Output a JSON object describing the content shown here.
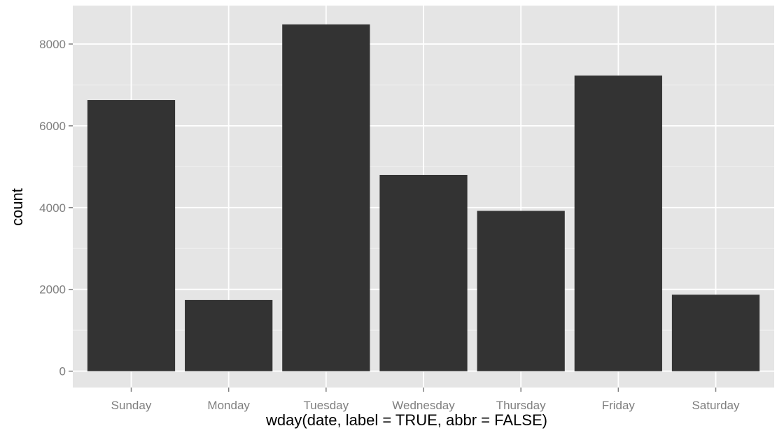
{
  "chart_data": {
    "type": "bar",
    "xlabel": "wday(date, label = TRUE, abbr = FALSE)",
    "ylabel": "count",
    "categories": [
      "Sunday",
      "Monday",
      "Tuesday",
      "Wednesday",
      "Thursday",
      "Friday",
      "Saturday"
    ],
    "values": [
      6630,
      1740,
      8480,
      4800,
      3920,
      7230,
      1870
    ],
    "ylim": [
      -400,
      8940
    ],
    "yticks": [
      0,
      2000,
      4000,
      6000,
      8000
    ],
    "ytick_labels": [
      "0",
      "2000",
      "4000",
      "6000",
      "8000"
    ],
    "grid": true,
    "legend": "none",
    "colors": {
      "panel_background": "#e5e5e5",
      "grid_major": "#ffffff",
      "grid_minor": "#f2f2f2",
      "bar_fill": "#333333",
      "tick_text": "#7f7f7f",
      "tick_mark": "#7f7f7f",
      "axis_title": "#000000"
    }
  }
}
